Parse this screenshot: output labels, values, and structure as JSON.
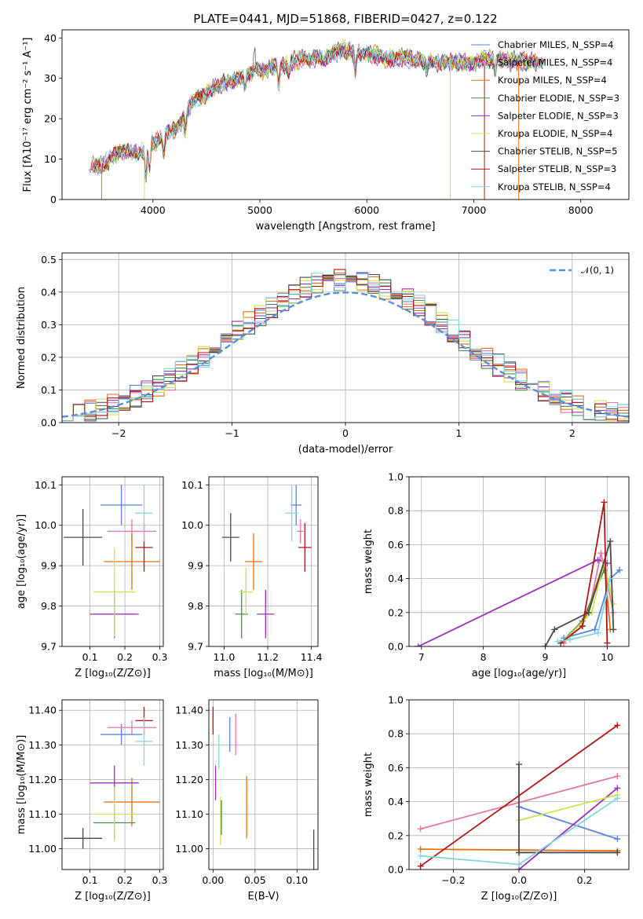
{
  "figure_title": "PLATE=0441, MJD=51868, FIBERID=0427, z=0.122",
  "chart_data": [
    {
      "id": "spectrum",
      "type": "line",
      "xlabel": "wavelength [Angstrom, rest frame]",
      "ylabel": "Flux [fλ10⁻¹⁷ erg cm⁻² s⁻¹ A⁻¹]",
      "xlim": [
        3150,
        8450
      ],
      "ylim": [
        0,
        42
      ],
      "xticks": [
        4000,
        5000,
        6000,
        7000,
        8000
      ],
      "yticks": [
        0,
        10,
        20,
        30,
        40
      ],
      "grid": false,
      "legend_position": "top-right",
      "continuum_x": [
        3400,
        3500,
        3700,
        3900,
        4000,
        4200,
        4400,
        4600,
        4800,
        5000,
        5200,
        5400,
        5600,
        5800,
        6000,
        6200,
        6400,
        6600,
        6800,
        7000,
        7200,
        7400,
        7600
      ],
      "continuum_y": [
        9,
        8,
        12,
        12,
        14,
        17,
        25,
        28,
        30,
        32,
        33,
        35,
        35,
        37,
        36,
        35,
        35,
        34,
        34,
        34,
        35,
        34,
        34
      ],
      "series": [
        {
          "name": "Chabrier MILES, N_SSP=4",
          "color": "#5b84dd"
        },
        {
          "name": "Salpeter MILES, N_SSP=4",
          "color": "#e377a6"
        },
        {
          "name": "Kroupa MILES, N_SSP=4",
          "color": "#e56f0f"
        },
        {
          "name": "Chabrier ELODIE, N_SSP=3",
          "color": "#4c8a4c"
        },
        {
          "name": "Salpeter ELODIE, N_SSP=3",
          "color": "#9a30b8"
        },
        {
          "name": "Kroupa ELODIE, N_SSP=4",
          "color": "#cde255"
        },
        {
          "name": "Chabrier STELIB, N_SSP=5",
          "color": "#4a4a4a"
        },
        {
          "name": "Salpeter STELIB, N_SSP=3",
          "color": "#b01518"
        },
        {
          "name": "Kroupa STELIB, N_SSP=4",
          "color": "#7fd8dc"
        }
      ]
    },
    {
      "id": "residuals",
      "type": "histogram",
      "xlabel": "(data-model)/error",
      "ylabel": "Normed distribution",
      "xlim": [
        -2.5,
        2.5
      ],
      "ylim": [
        0,
        0.52
      ],
      "xticks": [
        -2,
        -1,
        0,
        1,
        2
      ],
      "yticks": [
        0.0,
        0.1,
        0.2,
        0.3,
        0.4,
        0.5
      ],
      "grid": true,
      "legend": "𝒩(0, 1)",
      "legend_position": "top-right",
      "bin_width": 0.1,
      "model_curve": "normal(0,1)"
    },
    {
      "id": "age_vs_Z",
      "type": "errorbar",
      "xlabel": "Z [log₁₀(Z/Z⊙)]",
      "ylabel": "age  [log₁₀(age/yr)]",
      "xlim": [
        0.02,
        0.31
      ],
      "ylim": [
        9.7,
        10.12
      ],
      "xticks": [
        0.1,
        0.2,
        0.3
      ],
      "yticks": [
        9.7,
        9.8,
        9.9,
        10.0,
        10.1
      ],
      "points": [
        {
          "x": 0.19,
          "y": 10.05,
          "xerr": 0.06,
          "yerr": 0.05,
          "color": "#5b84dd"
        },
        {
          "x": 0.22,
          "y": 9.985,
          "xerr": 0.07,
          "yerr": 0.03,
          "color": "#e377a6"
        },
        {
          "x": 0.22,
          "y": 9.91,
          "xerr": 0.08,
          "yerr": 0.07,
          "color": "#e56f0f"
        },
        {
          "x": 0.17,
          "y": 9.78,
          "xerr": 0.06,
          "yerr": 0.06,
          "color": "#4c8a4c"
        },
        {
          "x": 0.17,
          "y": 9.78,
          "xerr": 0.07,
          "yerr": 0.05,
          "color": "#9a30b8"
        },
        {
          "x": 0.17,
          "y": 9.835,
          "xerr": 0.06,
          "yerr": 0.11,
          "color": "#cde255"
        },
        {
          "x": 0.08,
          "y": 9.97,
          "xerr": 0.055,
          "yerr": 0.07,
          "color": "#4a4a4a"
        },
        {
          "x": 0.255,
          "y": 9.945,
          "xerr": 0.025,
          "yerr": 0.06,
          "color": "#b01518"
        },
        {
          "x": 0.255,
          "y": 10.03,
          "xerr": 0.025,
          "yerr": 0.07,
          "color": "#7fd8dc"
        }
      ]
    },
    {
      "id": "age_vs_mass",
      "type": "errorbar",
      "xlabel": "mass [log₁₀(M/M⊙)]",
      "ylabel": "",
      "xlim": [
        10.93,
        11.43
      ],
      "ylim": [
        9.7,
        10.12
      ],
      "xticks": [
        11.0,
        11.2,
        11.4
      ],
      "yticks": [
        9.7,
        9.8,
        9.9,
        10.0,
        10.1
      ],
      "points": [
        {
          "x": 11.33,
          "y": 10.05,
          "xerr": 0.025,
          "yerr": 0.05,
          "color": "#5b84dd"
        },
        {
          "x": 11.35,
          "y": 9.985,
          "xerr": 0.015,
          "yerr": 0.03,
          "color": "#e377a6"
        },
        {
          "x": 11.135,
          "y": 9.91,
          "xerr": 0.04,
          "yerr": 0.07,
          "color": "#e56f0f"
        },
        {
          "x": 11.08,
          "y": 9.78,
          "xerr": 0.03,
          "yerr": 0.06,
          "color": "#4c8a4c"
        },
        {
          "x": 11.19,
          "y": 9.78,
          "xerr": 0.04,
          "yerr": 0.06,
          "color": "#9a30b8"
        },
        {
          "x": 11.1,
          "y": 9.835,
          "xerr": 0.03,
          "yerr": 0.06,
          "color": "#cde255"
        },
        {
          "x": 11.03,
          "y": 9.97,
          "xerr": 0.04,
          "yerr": 0.06,
          "color": "#4a4a4a"
        },
        {
          "x": 11.37,
          "y": 9.945,
          "xerr": 0.03,
          "yerr": 0.06,
          "color": "#b01518"
        },
        {
          "x": 11.31,
          "y": 10.03,
          "xerr": 0.03,
          "yerr": 0.07,
          "color": "#7fd8dc"
        }
      ]
    },
    {
      "id": "weight_vs_age",
      "type": "line",
      "xlabel": "age  [log₁₀(age/yr)]",
      "ylabel": "mass weight",
      "xlim": [
        6.8,
        10.35
      ],
      "ylim": [
        0,
        1.0
      ],
      "xticks": [
        7,
        8,
        9,
        10
      ],
      "yticks": [
        0.0,
        0.2,
        0.4,
        0.6,
        0.8,
        1.0
      ],
      "grid": true,
      "series": [
        {
          "color": "#5b84dd",
          "x": [
            9.3,
            9.8,
            10.05,
            10.2
          ],
          "y": [
            0.05,
            0.1,
            0.4,
            0.45
          ]
        },
        {
          "color": "#e377a6",
          "x": [
            9.3,
            9.7,
            9.9,
            10.1
          ],
          "y": [
            0.02,
            0.2,
            0.55,
            0.2
          ]
        },
        {
          "color": "#e56f0f",
          "x": [
            9.25,
            9.6,
            9.95,
            10.05
          ],
          "y": [
            0.02,
            0.12,
            0.5,
            0.1
          ]
        },
        {
          "color": "#4c8a4c",
          "x": [
            9.25,
            9.6,
            9.95
          ],
          "y": [
            0.02,
            0.15,
            0.45
          ]
        },
        {
          "color": "#9a30b8",
          "x": [
            6.95,
            9.85,
            10.0
          ],
          "y": [
            0.0,
            0.51,
            0.49
          ]
        },
        {
          "color": "#cde255",
          "x": [
            9.35,
            9.75,
            9.95,
            10.1
          ],
          "y": [
            0.05,
            0.2,
            0.5,
            0.25
          ]
        },
        {
          "color": "#4a4a4a",
          "x": [
            9.0,
            9.15,
            9.7,
            10.05,
            10.1
          ],
          "y": [
            0.0,
            0.1,
            0.2,
            0.62,
            0.1
          ]
        },
        {
          "color": "#b01518",
          "x": [
            9.25,
            9.6,
            9.95,
            10.0
          ],
          "y": [
            0.02,
            0.12,
            0.85,
            0.02
          ]
        },
        {
          "color": "#7fd8dc",
          "x": [
            9.2,
            9.4,
            9.85,
            10.05
          ],
          "y": [
            0.03,
            0.04,
            0.08,
            0.4
          ]
        }
      ]
    },
    {
      "id": "mass_vs_Z",
      "type": "errorbar",
      "xlabel": "Z [log₁₀(Z/Z⊙)]",
      "ylabel": "mass [log₁₀(M/M⊙)]",
      "xlim": [
        0.02,
        0.31
      ],
      "ylim": [
        10.94,
        11.43
      ],
      "xticks": [
        0.1,
        0.2,
        0.3
      ],
      "yticks": [
        11.0,
        11.1,
        11.2,
        11.3,
        11.4
      ],
      "points": [
        {
          "x": 0.19,
          "y": 11.33,
          "xerr": 0.06,
          "yerr": 0.03,
          "color": "#5b84dd"
        },
        {
          "x": 0.22,
          "y": 11.35,
          "xerr": 0.07,
          "yerr": 0.02,
          "color": "#e377a6"
        },
        {
          "x": 0.22,
          "y": 11.135,
          "xerr": 0.08,
          "yerr": 0.07,
          "color": "#e56f0f"
        },
        {
          "x": 0.17,
          "y": 11.075,
          "xerr": 0.06,
          "yerr": 0.05,
          "color": "#4c8a4c"
        },
        {
          "x": 0.17,
          "y": 11.19,
          "xerr": 0.07,
          "yerr": 0.05,
          "color": "#9a30b8"
        },
        {
          "x": 0.17,
          "y": 11.1,
          "xerr": 0.06,
          "yerr": 0.08,
          "color": "#cde255"
        },
        {
          "x": 0.08,
          "y": 11.03,
          "xerr": 0.055,
          "yerr": 0.03,
          "color": "#4a4a4a"
        },
        {
          "x": 0.255,
          "y": 11.37,
          "xerr": 0.025,
          "yerr": 0.04,
          "color": "#b01518"
        },
        {
          "x": 0.255,
          "y": 11.31,
          "xerr": 0.025,
          "yerr": 0.07,
          "color": "#7fd8dc"
        }
      ]
    },
    {
      "id": "mass_vs_ebv",
      "type": "errorbar",
      "xlabel": "E(B-V)",
      "ylabel": "",
      "xlim": [
        -0.005,
        0.125
      ],
      "ylim": [
        10.94,
        11.43
      ],
      "xticks": [
        0.0,
        0.05,
        0.1
      ],
      "yticks": [
        11.0,
        11.1,
        11.2,
        11.3,
        11.4
      ],
      "points": [
        {
          "x": 0.0,
          "y": 11.37,
          "xerr": 0,
          "yerr": 0.04,
          "color": "#b01518"
        },
        {
          "x": 0.003,
          "y": 11.19,
          "xerr": 0,
          "yerr": 0.05,
          "color": "#9a30b8"
        },
        {
          "x": 0.007,
          "y": 11.28,
          "xerr": 0,
          "yerr": 0.05,
          "color": "#7fd8dc"
        },
        {
          "x": 0.009,
          "y": 11.08,
          "xerr": 0,
          "yerr": 0.07,
          "color": "#cde255"
        },
        {
          "x": 0.01,
          "y": 11.09,
          "xerr": 0,
          "yerr": 0.05,
          "color": "#4c8a4c"
        },
        {
          "x": 0.02,
          "y": 11.33,
          "xerr": 0,
          "yerr": 0.05,
          "color": "#5b84dd"
        },
        {
          "x": 0.027,
          "y": 11.33,
          "xerr": 0,
          "yerr": 0.06,
          "color": "#e377a6"
        },
        {
          "x": 0.04,
          "y": 11.12,
          "xerr": 0,
          "yerr": 0.09,
          "color": "#e56f0f"
        },
        {
          "x": 0.12,
          "y": 10.975,
          "xerr": 0,
          "yerr": 0.08,
          "color": "#4a4a4a"
        }
      ]
    },
    {
      "id": "weight_vs_Z",
      "type": "line",
      "xlabel": "Z [log₁₀(Z/Z⊙)]",
      "ylabel": "mass weight",
      "xlim": [
        -0.335,
        0.335
      ],
      "ylim": [
        0,
        1.0
      ],
      "xticks": [
        -0.2,
        0.0,
        0.2
      ],
      "yticks": [
        0.0,
        0.2,
        0.4,
        0.6,
        0.8,
        1.0
      ],
      "grid": true,
      "series": [
        {
          "color": "#5b84dd",
          "x": [
            0.0,
            0.3
          ],
          "y": [
            0.37,
            0.18
          ]
        },
        {
          "color": "#e377a6",
          "x": [
            -0.3,
            0.3
          ],
          "y": [
            0.24,
            0.55
          ]
        },
        {
          "color": "#e56f0f",
          "x": [
            -0.3,
            0.3
          ],
          "y": [
            0.12,
            0.11
          ]
        },
        {
          "color": "#4c8a4c",
          "x": [
            0.0,
            0.3
          ],
          "y": [
            0.1,
            0.1
          ]
        },
        {
          "color": "#9a30b8",
          "x": [
            0.0,
            0.3
          ],
          "y": [
            0.0,
            0.48
          ]
        },
        {
          "color": "#cde255",
          "x": [
            0.0,
            0.3
          ],
          "y": [
            0.29,
            0.44
          ]
        },
        {
          "color": "#4a4a4a",
          "x": [
            0.0,
            0.0,
            0.3
          ],
          "y": [
            0.62,
            0.1,
            0.1
          ]
        },
        {
          "color": "#b01518",
          "x": [
            -0.3,
            0.3
          ],
          "y": [
            0.02,
            0.85
          ]
        },
        {
          "color": "#7fd8dc",
          "x": [
            -0.3,
            0.0,
            0.3
          ],
          "y": [
            0.08,
            0.03,
            0.42
          ]
        }
      ]
    }
  ]
}
